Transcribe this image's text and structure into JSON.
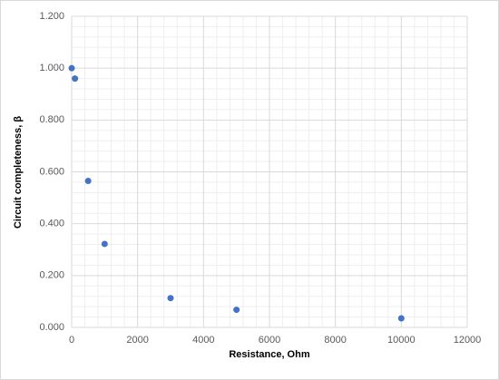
{
  "chart_data": {
    "type": "scatter",
    "x_label": "Resistance, Ohm",
    "y_label": "Circuit completeness, β",
    "x": [
      0,
      100,
      500,
      1000,
      3000,
      5000,
      10000
    ],
    "values": [
      1.0,
      0.96,
      0.565,
      0.322,
      0.113,
      0.068,
      0.035
    ],
    "color": "#4472c4",
    "xlim": [
      0,
      12000
    ],
    "ylim": [
      0,
      1.2
    ],
    "xticks": [
      0,
      2000,
      4000,
      6000,
      8000,
      10000,
      12000
    ],
    "yticks": [
      {
        "value": 0,
        "label": "0.000"
      },
      {
        "value": 0.2,
        "label": "0.200"
      },
      {
        "value": 0.4,
        "label": "0.400"
      },
      {
        "value": 0.6,
        "label": "0.600"
      },
      {
        "value": 0.8,
        "label": "0.800"
      },
      {
        "value": 1.0,
        "label": "1.000"
      },
      {
        "value": 1.2,
        "label": "1.200"
      }
    ],
    "grid": true,
    "minor_grid": true
  }
}
